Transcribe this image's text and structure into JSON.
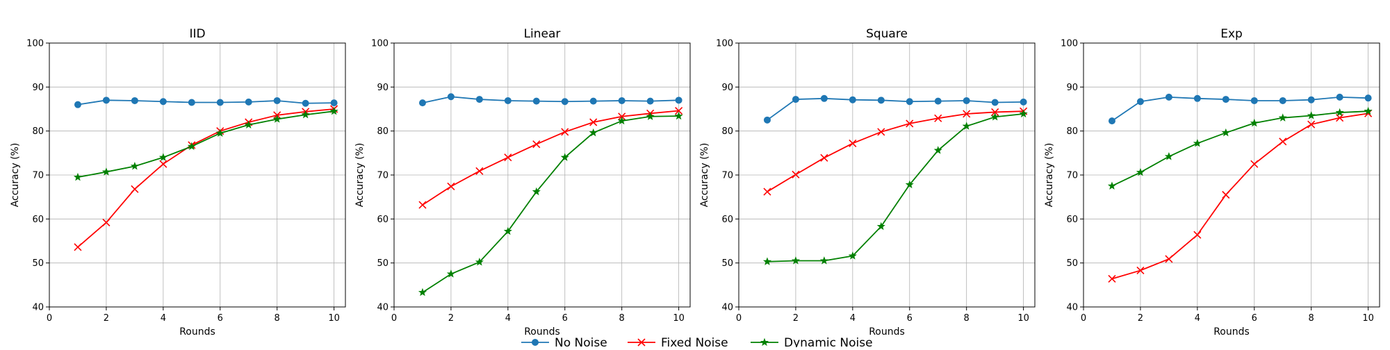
{
  "chart_data": {
    "type": "line",
    "legend": {
      "placement": "bottom-center",
      "entries": [
        "No Noise",
        "Fixed Noise",
        "Dynamic Noise"
      ]
    },
    "series_styles": [
      {
        "name": "No Noise",
        "color": "#1f77b4",
        "marker": "circle"
      },
      {
        "name": "Fixed Noise",
        "color": "#ff0000",
        "marker": "x"
      },
      {
        "name": "Dynamic Noise",
        "color": "#008000",
        "marker": "star"
      }
    ],
    "grid": true,
    "panels": [
      {
        "title": "IID",
        "xlabel": "Rounds",
        "ylabel": "Accuracy (%)",
        "xlim": [
          0,
          10.4
        ],
        "ylim": [
          40,
          100
        ],
        "xticks": [
          0,
          2,
          4,
          6,
          8,
          10
        ],
        "yticks": [
          40,
          50,
          60,
          70,
          80,
          90,
          100
        ],
        "x": [
          1,
          2,
          3,
          4,
          5,
          6,
          7,
          8,
          9,
          10
        ],
        "series": [
          {
            "name": "No Noise",
            "values": [
              86.0,
              87.0,
              86.9,
              86.7,
              86.5,
              86.5,
              86.6,
              86.9,
              86.3,
              86.4
            ]
          },
          {
            "name": "Fixed Noise",
            "values": [
              53.6,
              59.2,
              66.8,
              72.5,
              76.8,
              80.0,
              82.0,
              83.6,
              84.4,
              85.0
            ]
          },
          {
            "name": "Dynamic Noise",
            "values": [
              69.5,
              70.7,
              72.0,
              74.0,
              76.5,
              79.5,
              81.4,
              82.7,
              83.7,
              84.5
            ]
          }
        ]
      },
      {
        "title": "Linear",
        "xlabel": "Rounds",
        "ylabel": "Accuracy (%)",
        "xlim": [
          0,
          10.4
        ],
        "ylim": [
          40,
          100
        ],
        "xticks": [
          0,
          2,
          4,
          6,
          8,
          10
        ],
        "yticks": [
          40,
          50,
          60,
          70,
          80,
          90,
          100
        ],
        "x": [
          1,
          2,
          3,
          4,
          5,
          6,
          7,
          8,
          9,
          10
        ],
        "series": [
          {
            "name": "No Noise",
            "values": [
              86.4,
              87.8,
              87.2,
              86.9,
              86.8,
              86.7,
              86.8,
              86.9,
              86.8,
              87.0
            ]
          },
          {
            "name": "Fixed Noise",
            "values": [
              63.2,
              67.4,
              70.9,
              74.0,
              77.0,
              79.8,
              82.0,
              83.3,
              84.0,
              84.6
            ]
          },
          {
            "name": "Dynamic Noise",
            "values": [
              43.3,
              47.5,
              50.2,
              57.2,
              66.2,
              74.0,
              79.6,
              82.3,
              83.3,
              83.4
            ]
          }
        ]
      },
      {
        "title": "Square",
        "xlabel": "Rounds",
        "ylabel": "Accuracy (%)",
        "xlim": [
          0,
          10.4
        ],
        "ylim": [
          40,
          100
        ],
        "xticks": [
          0,
          2,
          4,
          6,
          8,
          10
        ],
        "yticks": [
          40,
          50,
          60,
          70,
          80,
          90,
          100
        ],
        "x": [
          1,
          2,
          3,
          4,
          5,
          6,
          7,
          8,
          9,
          10
        ],
        "series": [
          {
            "name": "No Noise",
            "values": [
              82.5,
              87.2,
              87.4,
              87.1,
              87.0,
              86.7,
              86.8,
              86.9,
              86.5,
              86.6
            ]
          },
          {
            "name": "Fixed Noise",
            "values": [
              66.2,
              70.1,
              73.9,
              77.2,
              79.8,
              81.7,
              82.9,
              83.9,
              84.3,
              84.5
            ]
          },
          {
            "name": "Dynamic Noise",
            "values": [
              50.3,
              50.5,
              50.5,
              51.6,
              58.3,
              67.8,
              75.6,
              81.1,
              83.2,
              83.9
            ]
          }
        ]
      },
      {
        "title": "Exp",
        "xlabel": "Rounds",
        "ylabel": "Accuracy (%)",
        "xlim": [
          0,
          10.4
        ],
        "ylim": [
          40,
          100
        ],
        "xticks": [
          0,
          2,
          4,
          6,
          8,
          10
        ],
        "yticks": [
          40,
          50,
          60,
          70,
          80,
          90,
          100
        ],
        "x": [
          1,
          2,
          3,
          4,
          5,
          6,
          7,
          8,
          9,
          10
        ],
        "series": [
          {
            "name": "No Noise",
            "values": [
              82.3,
              86.7,
              87.7,
              87.4,
              87.2,
              86.9,
              86.9,
              87.1,
              87.7,
              87.5
            ]
          },
          {
            "name": "Fixed Noise",
            "values": [
              46.4,
              48.3,
              50.9,
              56.4,
              65.5,
              72.5,
              77.6,
              81.5,
              83.0,
              84.0
            ]
          },
          {
            "name": "Dynamic Noise",
            "values": [
              67.5,
              70.6,
              74.2,
              77.2,
              79.6,
              81.8,
              83.0,
              83.5,
              84.2,
              84.5
            ]
          }
        ]
      }
    ]
  }
}
